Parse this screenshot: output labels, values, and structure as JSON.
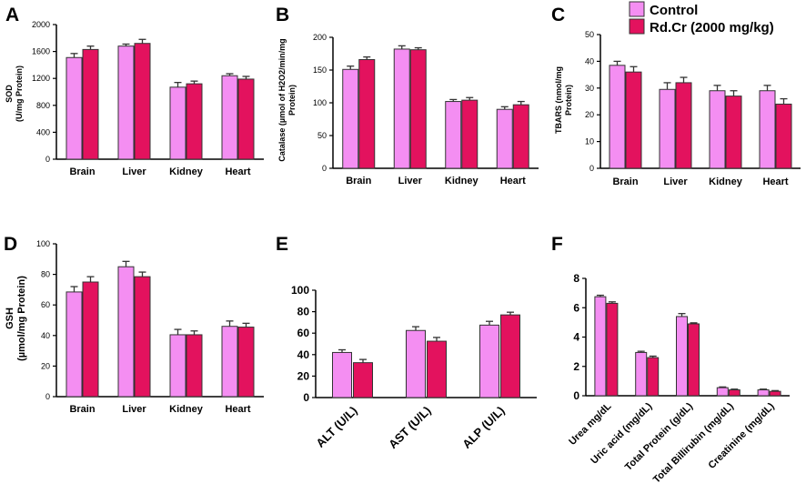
{
  "legend": {
    "series": [
      {
        "name": "Control",
        "color": "#f48ef2"
      },
      {
        "name": "Rd.Cr (2000 mg/kg)",
        "color": "#e3125e"
      }
    ]
  },
  "panel_labels": [
    "A",
    "B",
    "C",
    "D",
    "E",
    "F"
  ],
  "chart_data": [
    {
      "id": "A",
      "type": "bar",
      "title": "",
      "ylabel": [
        "SOD",
        "(U/mg Protein)"
      ],
      "categories": [
        "Brain",
        "Liver",
        "Kidney",
        "Heart"
      ],
      "ylim": [
        0,
        2000
      ],
      "yticks": [
        0,
        400,
        800,
        1200,
        1600,
        2000
      ],
      "series": [
        {
          "name": "Control",
          "values": [
            1510,
            1680,
            1070,
            1240
          ],
          "errors": [
            60,
            30,
            70,
            30
          ]
        },
        {
          "name": "Rd.Cr (2000 mg/kg)",
          "values": [
            1630,
            1720,
            1120,
            1190
          ],
          "errors": [
            50,
            60,
            40,
            40
          ]
        }
      ]
    },
    {
      "id": "B",
      "type": "bar",
      "title": "",
      "ylabel": [
        "Catalase (µmol of H2O2/min/mg",
        "Protein)"
      ],
      "categories": [
        "Brain",
        "Liver",
        "Kidney",
        "Heart"
      ],
      "ylim": [
        0,
        200
      ],
      "yticks": [
        0,
        50,
        100,
        150,
        200
      ],
      "series": [
        {
          "name": "Control",
          "values": [
            151,
            182,
            102,
            90
          ],
          "errors": [
            5,
            5,
            3,
            4
          ]
        },
        {
          "name": "Rd.Cr (2000 mg/kg)",
          "values": [
            166,
            181,
            104,
            97
          ],
          "errors": [
            4,
            3,
            4,
            5
          ]
        }
      ]
    },
    {
      "id": "C",
      "type": "bar",
      "title": "",
      "ylabel": [
        "TBARS (nmol/mg",
        "Protein)"
      ],
      "categories": [
        "Brain",
        "Liver",
        "Kidney",
        "Heart"
      ],
      "ylim": [
        0,
        50
      ],
      "yticks": [
        0,
        10,
        20,
        30,
        40,
        50
      ],
      "series": [
        {
          "name": "Control",
          "values": [
            38.5,
            29.5,
            29,
            29
          ],
          "errors": [
            1.5,
            2.5,
            2,
            2
          ]
        },
        {
          "name": "Rd.Cr (2000 mg/kg)",
          "values": [
            36,
            32,
            27,
            24
          ],
          "errors": [
            2,
            2,
            2,
            2
          ]
        }
      ]
    },
    {
      "id": "D",
      "type": "bar",
      "title": "",
      "ylabel": [
        "GSH",
        "(µmol/mg Protein)"
      ],
      "categories": [
        "Brain",
        "Liver",
        "Kidney",
        "Heart"
      ],
      "ylim": [
        0,
        100
      ],
      "yticks": [
        0,
        20,
        40,
        60,
        80,
        100
      ],
      "series": [
        {
          "name": "Control",
          "values": [
            68.5,
            85,
            40.5,
            46
          ],
          "errors": [
            3.5,
            3.5,
            3.5,
            3.5
          ]
        },
        {
          "name": "Rd.Cr (2000 mg/kg)",
          "values": [
            75,
            78.5,
            40.5,
            45.5
          ],
          "errors": [
            3.5,
            3,
            2.5,
            2.5
          ]
        }
      ]
    },
    {
      "id": "E",
      "type": "bar",
      "title": "",
      "ylabel": [],
      "categories": [
        "ALT (U/L)",
        "AST (U/L)",
        "ALP (U/L)"
      ],
      "ylim": [
        0,
        100
      ],
      "yticks": [
        0,
        20,
        40,
        60,
        80,
        100
      ],
      "series": [
        {
          "name": "Control",
          "values": [
            42,
            62.5,
            67.5
          ],
          "errors": [
            2.5,
            3.5,
            3.5
          ]
        },
        {
          "name": "Rd.Cr (2000 mg/kg)",
          "values": [
            32.5,
            52.5,
            77
          ],
          "errors": [
            3,
            3.5,
            2.5
          ]
        }
      ]
    },
    {
      "id": "F",
      "type": "bar",
      "title": "",
      "ylabel": [],
      "categories": [
        "Urea mg/dL",
        "Uric acid (mg/dL)",
        "Total Protein (g/dL)",
        "Total Billirubin (mg/dL)",
        "Creatinine (mg/dL)"
      ],
      "ylim": [
        0,
        8
      ],
      "yticks": [
        0,
        2,
        4,
        6,
        8
      ],
      "series": [
        {
          "name": "Control",
          "values": [
            6.75,
            2.95,
            5.4,
            0.55,
            0.4
          ],
          "errors": [
            0.1,
            0.08,
            0.2,
            0.05,
            0.05
          ]
        },
        {
          "name": "Rd.Cr (2000 mg/kg)",
          "values": [
            6.3,
            2.6,
            4.9,
            0.4,
            0.3
          ],
          "errors": [
            0.1,
            0.1,
            0.07,
            0.05,
            0.05
          ]
        }
      ]
    }
  ]
}
